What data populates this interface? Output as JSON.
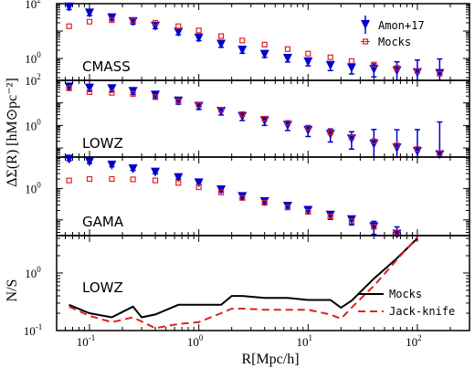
{
  "chart_data": [
    {
      "type": "scatter",
      "panel": "CMASS",
      "label": "CMASS",
      "ylim_log": [
        -0.8,
        2
      ],
      "yticks": [
        {
          "base": "10",
          "exp": "2",
          "v": 2
        },
        {
          "base": "10",
          "exp": "0",
          "v": 0
        }
      ],
      "series": [
        {
          "name": "Amon+17",
          "color": "#0000cc",
          "marker": "triangle-down",
          "x": [
            0.065,
            0.1,
            0.16,
            0.25,
            0.4,
            0.65,
            1.0,
            1.6,
            2.5,
            4.0,
            6.5,
            10,
            16,
            25,
            40,
            65,
            100,
            160
          ],
          "y": [
            75,
            45,
            30,
            22,
            15,
            9,
            5.5,
            3.3,
            2.0,
            1.4,
            1.0,
            0.75,
            0.55,
            0.45,
            0.4,
            0.35,
            0.3,
            0.28
          ],
          "err": [
            0.05,
            0.05,
            0.05,
            0.05,
            0.05,
            0.05,
            0.05,
            0.06,
            0.06,
            0.06,
            0.07,
            0.08,
            0.1,
            0.12,
            0.15,
            0.25,
            0.35,
            0.4
          ]
        },
        {
          "name": "Mocks",
          "color": "#dd2222",
          "marker": "square",
          "x": [
            0.065,
            0.1,
            0.16,
            0.25,
            0.4,
            0.65,
            1.0,
            1.6,
            2.5,
            4.0,
            6.5,
            10,
            16,
            25,
            40,
            65,
            100,
            160
          ],
          "y": [
            15,
            22,
            25,
            24,
            20,
            15,
            10.5,
            6.5,
            4.5,
            3.2,
            2.2,
            1.5,
            1.1,
            0.8,
            0.6,
            0.45,
            0.35,
            0.28
          ],
          "err": [
            0,
            0,
            0,
            0,
            0,
            0,
            0,
            0,
            0,
            0,
            0,
            0,
            0,
            0,
            0,
            0,
            0,
            0
          ]
        }
      ],
      "legend": {
        "placement": "top-right",
        "entries": [
          "Amon+17",
          "Mocks"
        ]
      }
    },
    {
      "type": "scatter",
      "panel": "LOWZ",
      "label": "LOWZ",
      "ylim_log": [
        -1.4,
        2
      ],
      "yticks": [
        {
          "base": "10",
          "exp": "2",
          "v": 2
        },
        {
          "base": "10",
          "exp": "0",
          "v": 0
        }
      ],
      "series": [
        {
          "name": "Amon+17",
          "color": "#0000cc",
          "marker": "triangle-down",
          "x": [
            0.065,
            0.1,
            0.16,
            0.25,
            0.4,
            0.65,
            1.0,
            1.6,
            2.5,
            4.0,
            6.5,
            10,
            16,
            25,
            40,
            65,
            100,
            160
          ],
          "y": [
            50,
            45,
            42,
            32,
            22,
            12,
            7,
            4.2,
            2.5,
            1.6,
            1.0,
            0.6,
            0.4,
            0.25,
            0.15,
            0.1,
            0.07,
            0.05
          ],
          "err": [
            0.06,
            0.06,
            0.06,
            0.06,
            0.06,
            0.06,
            0.06,
            0.07,
            0.08,
            0.09,
            0.1,
            0.12,
            0.15,
            0.2,
            0.4,
            0.5,
            0.6,
            0.9
          ]
        },
        {
          "name": "Mocks",
          "color": "#dd2222",
          "marker": "square",
          "x": [
            0.065,
            0.1,
            0.16,
            0.25,
            0.4,
            0.65,
            1.0,
            1.6,
            2.5,
            4.0,
            6.5,
            10,
            16,
            25,
            40,
            65,
            100,
            160
          ],
          "y": [
            45,
            30,
            28,
            25,
            18,
            12,
            8,
            5,
            3.2,
            2.0,
            1.3,
            0.8,
            0.5,
            0.3,
            0.2,
            0.13,
            0.09,
            0.06
          ],
          "err": [
            0,
            0,
            0,
            0,
            0,
            0,
            0,
            0,
            0,
            0,
            0,
            0,
            0,
            0,
            0,
            0,
            0,
            0
          ]
        }
      ],
      "legend": null
    },
    {
      "type": "scatter",
      "panel": "GAMA",
      "label": "GAMA",
      "ylim_log": [
        -1.5,
        1
      ],
      "yticks": [
        {
          "base": "10",
          "exp": "0",
          "v": 0
        }
      ],
      "series": [
        {
          "name": "Amon+17",
          "color": "#0000cc",
          "marker": "triangle-down",
          "x": [
            0.065,
            0.1,
            0.16,
            0.25,
            0.4,
            0.65,
            1.0,
            1.6,
            2.5,
            4.0,
            6.5,
            10,
            16,
            25,
            40,
            65
          ],
          "y": [
            8.5,
            7,
            5.5,
            4.2,
            3.3,
            2.2,
            1.5,
            0.9,
            0.55,
            0.38,
            0.27,
            0.2,
            0.14,
            0.1,
            0.06,
            0.035
          ],
          "err": [
            0.03,
            0.03,
            0.03,
            0.03,
            0.03,
            0.03,
            0.03,
            0.04,
            0.05,
            0.05,
            0.06,
            0.07,
            0.08,
            0.1,
            0.15,
            0.2
          ]
        },
        {
          "name": "Mocks",
          "color": "#dd2222",
          "marker": "square",
          "x": [
            0.065,
            0.1,
            0.16,
            0.25,
            0.4,
            0.65,
            1.0,
            1.6,
            2.5,
            4.0,
            6.5,
            10,
            16,
            25,
            40,
            65,
            100
          ],
          "y": [
            1.8,
            2.0,
            2.0,
            1.95,
            1.8,
            1.5,
            1.1,
            0.75,
            0.5,
            0.35,
            0.25,
            0.18,
            0.13,
            0.09,
            0.06,
            0.04,
            0.025
          ],
          "err": [
            0,
            0,
            0,
            0,
            0,
            0,
            0,
            0,
            0,
            0,
            0,
            0,
            0,
            0,
            0,
            0,
            0.5
          ]
        }
      ],
      "legend": null
    },
    {
      "type": "line",
      "panel": "LOWZ-NS",
      "label": "LOWZ",
      "ylim_log": [
        -1,
        0.65
      ],
      "yticks": [
        {
          "base": "10",
          "exp": "0",
          "v": 0
        },
        {
          "base": "10",
          "exp": "-1",
          "v": -1
        }
      ],
      "ylabel": "N/S",
      "series": [
        {
          "name": "Mocks",
          "color": "#000000",
          "style": "solid",
          "x": [
            0.065,
            0.1,
            0.16,
            0.25,
            0.3,
            0.4,
            0.65,
            1.0,
            1.6,
            2.0,
            2.5,
            4.0,
            6.5,
            10,
            16,
            20,
            25,
            40,
            65,
            100
          ],
          "y": [
            0.28,
            0.2,
            0.17,
            0.26,
            0.17,
            0.19,
            0.28,
            0.28,
            0.28,
            0.4,
            0.4,
            0.37,
            0.37,
            0.34,
            0.34,
            0.25,
            0.33,
            0.8,
            1.8,
            4.0
          ]
        },
        {
          "name": "Jack-knife",
          "color": "#dd2222",
          "style": "dashed",
          "x": [
            0.065,
            0.1,
            0.16,
            0.25,
            0.4,
            0.65,
            1.0,
            1.6,
            2.0,
            2.5,
            4.0,
            6.5,
            10,
            16,
            20,
            25,
            40,
            65,
            100
          ],
          "y": [
            0.26,
            0.18,
            0.14,
            0.17,
            0.11,
            0.13,
            0.14,
            0.2,
            0.24,
            0.24,
            0.23,
            0.23,
            0.23,
            0.19,
            0.16,
            0.25,
            0.6,
            1.7,
            4.2
          ]
        }
      ],
      "legend": {
        "placement": "bottom-right",
        "entries": [
          "Mocks",
          "Jack-knife"
        ]
      }
    }
  ],
  "shared": {
    "xlim": [
      0.05,
      300
    ],
    "xticks": [
      {
        "base": "10",
        "exp": "-1",
        "v": 0.1
      },
      {
        "base": "10",
        "exp": "0",
        "v": 1
      },
      {
        "base": "10",
        "exp": "1",
        "v": 10
      },
      {
        "base": "10",
        "exp": "2",
        "v": 100
      }
    ],
    "xlabel": "R[Mpc/h]",
    "ylabel_top": "ΔΣ(R)  [hM⊙pc⁻²]",
    "ylabel_bottom": "N/S"
  }
}
